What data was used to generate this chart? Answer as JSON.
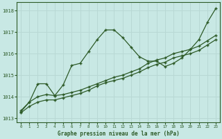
{
  "bg_color": "#c8e8e4",
  "grid_color": "#b8d8d4",
  "line_color": "#2d5a27",
  "title": "Graphe pression niveau de la mer (hPa)",
  "xlim": [
    -0.5,
    23.5
  ],
  "ylim": [
    1012.8,
    1018.4
  ],
  "yticks": [
    1013,
    1014,
    1015,
    1016,
    1017,
    1018
  ],
  "xticks": [
    0,
    1,
    2,
    3,
    4,
    5,
    6,
    7,
    8,
    9,
    10,
    11,
    12,
    13,
    14,
    15,
    16,
    17,
    18,
    19,
    20,
    21,
    22,
    23
  ],
  "line1_x": [
    0,
    1,
    2,
    3,
    4,
    5,
    6,
    7,
    8,
    9,
    10,
    11,
    12,
    13,
    14,
    15,
    16,
    17,
    18,
    19,
    20,
    21,
    22,
    23
  ],
  "line1_y": [
    1013.35,
    1013.75,
    1014.6,
    1014.6,
    1014.05,
    1014.55,
    1015.45,
    1015.55,
    1016.1,
    1016.65,
    1017.1,
    1017.1,
    1016.75,
    1016.3,
    1015.85,
    1015.65,
    1015.65,
    1015.4,
    1015.55,
    1015.8,
    1016.2,
    1016.65,
    1017.45,
    1018.1
  ],
  "line2_x": [
    0,
    1,
    2,
    3,
    4,
    5,
    6,
    7,
    8,
    9,
    10,
    11,
    12,
    13,
    14,
    15,
    16,
    17,
    18,
    19,
    20,
    21,
    22,
    23
  ],
  "line2_y": [
    1013.3,
    1013.75,
    1014.0,
    1014.1,
    1014.05,
    1014.1,
    1014.2,
    1014.3,
    1014.45,
    1014.6,
    1014.75,
    1014.9,
    1015.0,
    1015.15,
    1015.3,
    1015.55,
    1015.7,
    1015.8,
    1016.0,
    1016.1,
    1016.2,
    1016.35,
    1016.6,
    1016.85
  ],
  "line3_x": [
    0,
    1,
    2,
    3,
    4,
    5,
    6,
    7,
    8,
    9,
    10,
    11,
    12,
    13,
    14,
    15,
    16,
    17,
    18,
    19,
    20,
    21,
    22,
    23
  ],
  "line3_y": [
    1013.25,
    1013.55,
    1013.75,
    1013.85,
    1013.85,
    1013.95,
    1014.05,
    1014.15,
    1014.3,
    1014.5,
    1014.65,
    1014.75,
    1014.85,
    1015.0,
    1015.15,
    1015.35,
    1015.5,
    1015.6,
    1015.8,
    1015.9,
    1016.0,
    1016.15,
    1016.4,
    1016.65
  ]
}
